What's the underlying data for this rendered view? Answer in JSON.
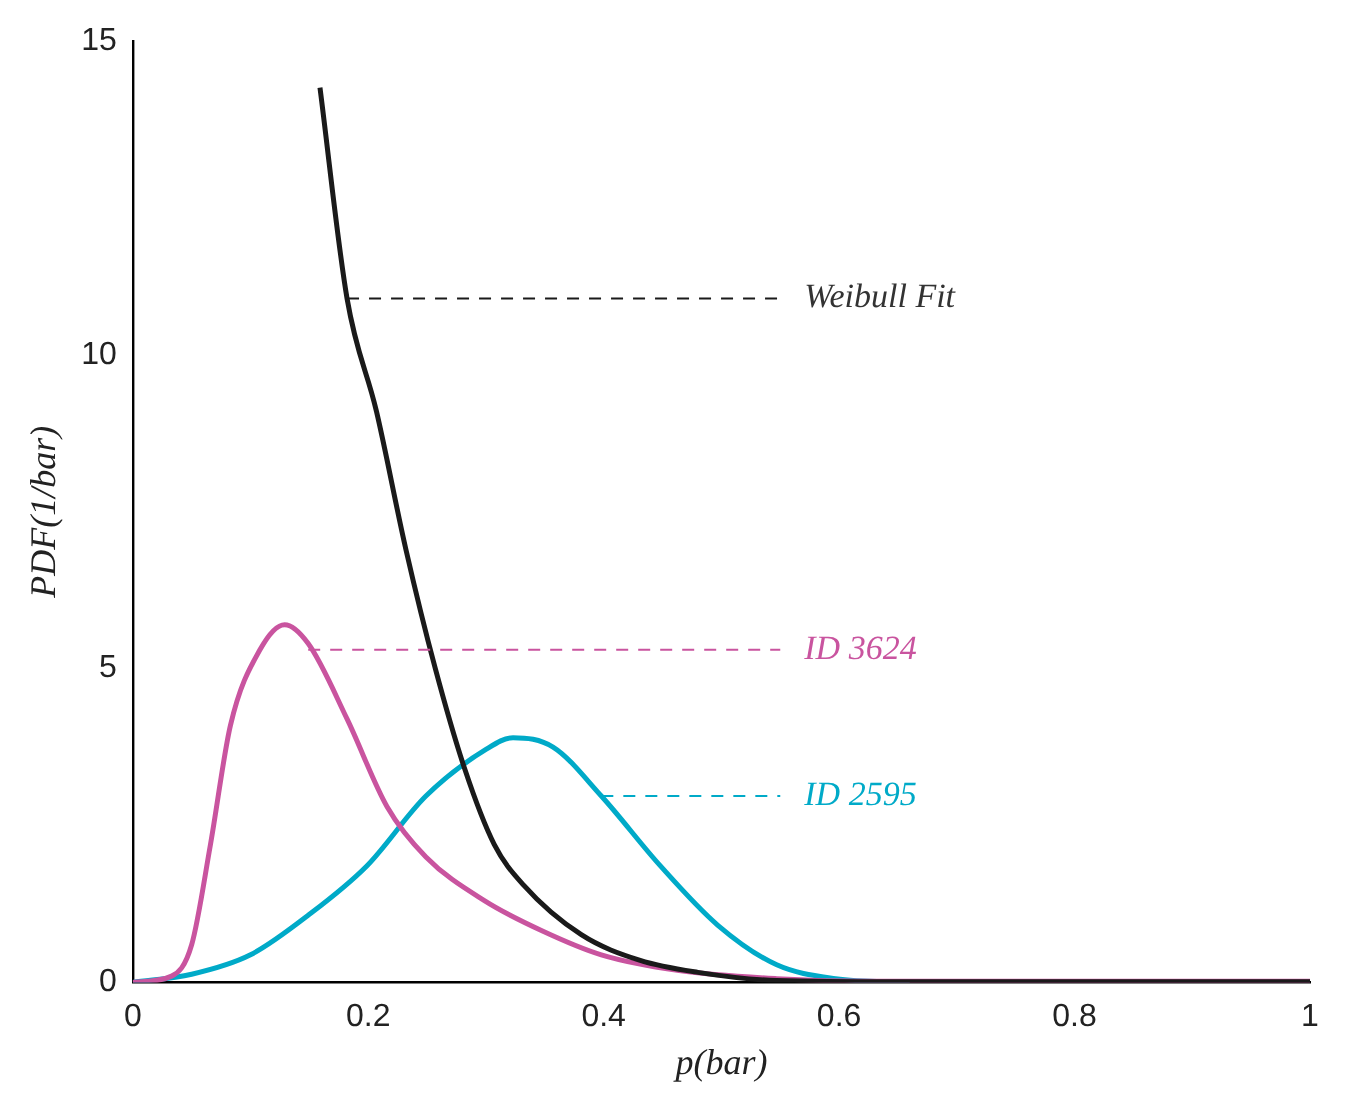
{
  "chart_data": {
    "type": "line",
    "xlabel": "p(bar)",
    "ylabel": "PDF(1/bar)",
    "xlim": [
      0,
      1
    ],
    "ylim": [
      0,
      15
    ],
    "xticks": [
      0,
      0.2,
      0.4,
      0.6,
      0.8,
      1
    ],
    "yticks": [
      0,
      5,
      10,
      15
    ],
    "grid": false,
    "legend": false,
    "marker": "none",
    "line_style": "solid",
    "series": [
      {
        "color": "#1a1a1a",
        "x": [
          0.159,
          0.182,
          0.207,
          0.232,
          0.257,
          0.282,
          0.307,
          0.332,
          0.381,
          0.431,
          0.48,
          0.547,
          0.65,
          0.8,
          1
        ],
        "values": [
          14.26,
          10.9,
          9.1,
          6.9,
          5.0,
          3.4,
          2.2,
          1.55,
          0.76,
          0.35,
          0.16,
          0.03,
          0.01,
          0.01,
          0.01
        ]
      },
      {
        "color": "#c9549f",
        "x": [
          0,
          0.033,
          0.05,
          0.066,
          0.083,
          0.108,
          0.129,
          0.149,
          0.182,
          0.216,
          0.249,
          0.299,
          0.348,
          0.398,
          0.464,
          0.547,
          0.63,
          0.8,
          1
        ],
        "values": [
          0,
          0.1,
          0.6,
          2.2,
          4.1,
          5.3,
          5.7,
          5.4,
          4.2,
          2.8,
          2.0,
          1.3,
          0.82,
          0.44,
          0.19,
          0.06,
          0.02,
          0.02,
          0.02
        ]
      },
      {
        "color": "#00aac8",
        "x": [
          0,
          0.05,
          0.1,
          0.149,
          0.199,
          0.249,
          0.299,
          0.323,
          0.357,
          0.398,
          0.448,
          0.497,
          0.547,
          0.597,
          0.66
        ],
        "values": [
          0,
          0.13,
          0.44,
          1.07,
          1.86,
          2.97,
          3.7,
          3.9,
          3.75,
          2.97,
          1.86,
          0.91,
          0.28,
          0.06,
          0
        ]
      }
    ],
    "annotations": [
      {
        "text": "Weibull Fit",
        "x": 0.182,
        "y": 10.9
      },
      {
        "text": "ID 3624",
        "x": 0.149,
        "y": 5.3
      },
      {
        "text": "ID 2595",
        "x": 0.398,
        "y": 2.97
      }
    ]
  }
}
